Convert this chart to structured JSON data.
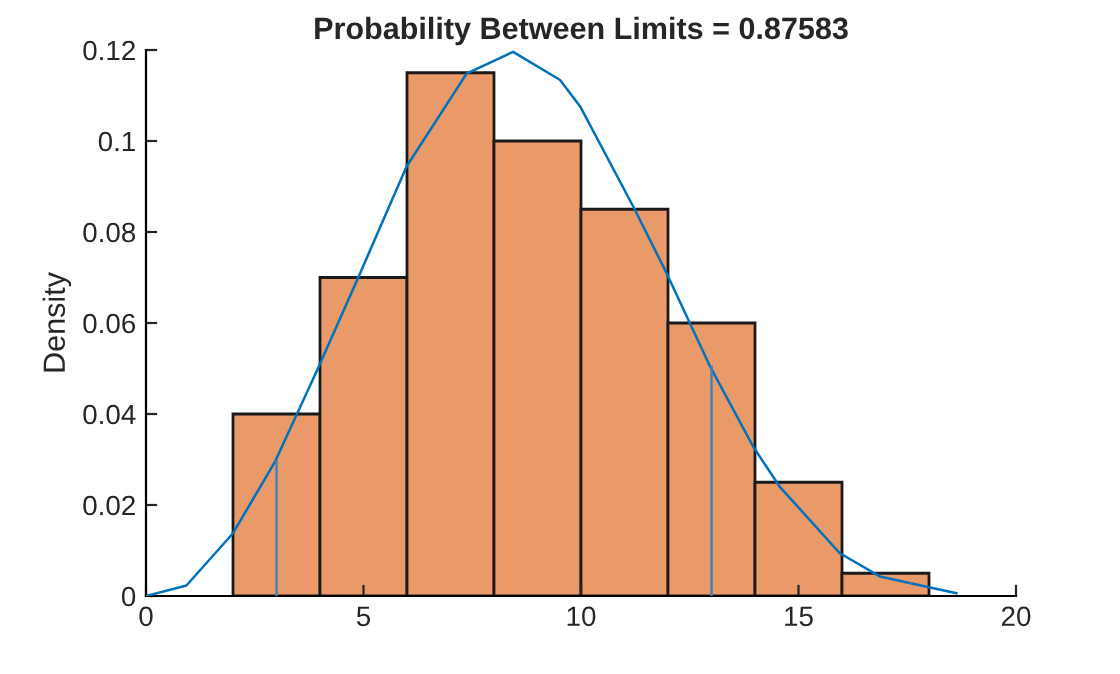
{
  "chart_data": {
    "type": "histogram",
    "title": "Probability Between Limits = 0.87583",
    "ylabel": "Density",
    "bins": [
      2,
      4,
      6,
      8,
      10,
      12,
      14,
      16,
      18
    ],
    "values": [
      0.04,
      0.07,
      0.115,
      0.1,
      0.085,
      0.06,
      0.025,
      0.005
    ],
    "color": "#ea9a69",
    "series": [
      {
        "type": "line",
        "color": "#0072bd",
        "x": [
          0,
          0.93,
          2.0,
          2.97,
          3.97,
          4.92,
          5.99,
          7.37,
          8.44,
          9.52,
          9.98,
          11.2,
          11.97,
          12.97,
          13.96,
          14.57,
          15.95,
          16.87,
          18.63
        ],
        "values": [
          0,
          0.0023,
          0.0138,
          0.0296,
          0.0504,
          0.0709,
          0.0944,
          0.1148,
          0.1196,
          0.1134,
          0.1076,
          0.0856,
          0.0709,
          0.0504,
          0.0328,
          0.024,
          0.0094,
          0.0043,
          0.0006
        ]
      },
      {
        "type": "line",
        "color": "#4a7fb0",
        "x": [
          3,
          3
        ],
        "values": [
          0,
          0.0296
        ]
      },
      {
        "type": "line",
        "color": "#4a7fb0",
        "x": [
          13,
          13
        ],
        "values": [
          0,
          0.0504
        ]
      }
    ],
    "xlim": [
      0,
      20
    ],
    "xticks": [
      0,
      5,
      10,
      15,
      20
    ],
    "ylim": [
      0,
      0.12
    ],
    "yticks": [
      0,
      0.02,
      0.04,
      0.06,
      0.08,
      0.1,
      0.12
    ],
    "grid": false,
    "legend": false
  }
}
